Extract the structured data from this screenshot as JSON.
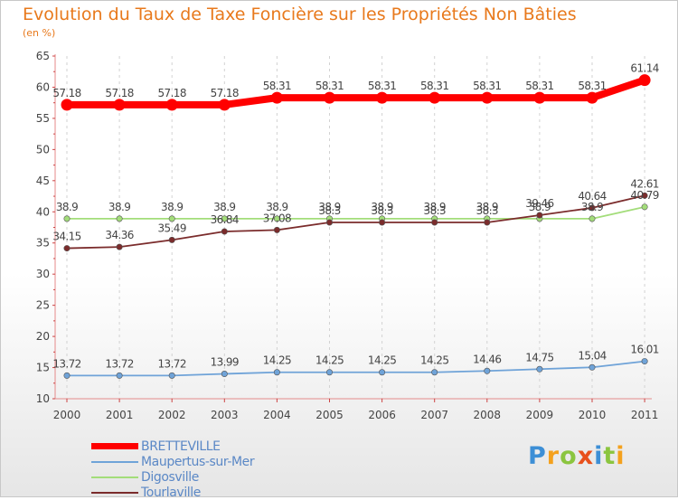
{
  "chart_data": {
    "type": "line",
    "title": "Evolution du Taux de Taxe Foncière sur les Propriétés Non Bâties",
    "subtitle": "(en %)",
    "x": [
      "2000",
      "2001",
      "2002",
      "2003",
      "2004",
      "2005",
      "2006",
      "2007",
      "2008",
      "2009",
      "2010",
      "2011"
    ],
    "ylim": [
      10,
      65
    ],
    "yticks": [
      "10",
      "15",
      "20",
      "25",
      "30",
      "35",
      "40",
      "45",
      "50",
      "55",
      "60",
      "65"
    ],
    "grid": "vertical dashed",
    "legend_position": "bottom-left",
    "series": [
      {
        "name": "BRETTEVILLE",
        "color": "#ff0000",
        "values": [
          57.18,
          57.18,
          57.18,
          57.18,
          58.31,
          58.31,
          58.31,
          58.31,
          58.31,
          58.31,
          58.31,
          61.14
        ],
        "labels": [
          "57.18",
          "57.18",
          "57.18",
          "57.18",
          "58.31",
          "58.31",
          "58.31",
          "58.31",
          "58.31",
          "58.31",
          "58.31",
          "61.14"
        ]
      },
      {
        "name": "Maupertus-sur-Mer",
        "color": "#6fa3d8",
        "values": [
          13.72,
          13.72,
          13.72,
          13.99,
          14.25,
          14.25,
          14.25,
          14.25,
          14.46,
          14.75,
          15.04,
          16.01
        ],
        "labels": [
          "13.72",
          "13.72",
          "13.72",
          "13.99",
          "14.25",
          "14.25",
          "14.25",
          "14.25",
          "14.46",
          "14.75",
          "15.04",
          "16.01"
        ]
      },
      {
        "name": "Digosville",
        "color": "#a3dd7a",
        "values": [
          38.9,
          38.9,
          38.9,
          38.9,
          38.9,
          38.9,
          38.9,
          38.9,
          38.9,
          38.9,
          38.9,
          40.79
        ],
        "labels": [
          "38.9",
          "38.9",
          "38.9",
          "38.9",
          "38.9",
          "38.9",
          "38.9",
          "38.9",
          "38.9",
          "38.9",
          "38.9",
          "40.79"
        ]
      },
      {
        "name": "Tourlaville",
        "color": "#7b2c2c",
        "values": [
          34.15,
          34.36,
          35.49,
          36.84,
          37.08,
          38.3,
          38.3,
          38.3,
          38.3,
          39.46,
          40.64,
          42.61
        ],
        "labels": [
          "34.15",
          "34.36",
          "35.49",
          "36.84",
          "37.08",
          "38.3",
          "38.3",
          "38.3",
          "38.3",
          "39.46",
          "40.64",
          "42.61"
        ]
      }
    ]
  },
  "logo": {
    "letters": [
      "P",
      "r",
      "o",
      "x",
      "i",
      "t",
      "i"
    ],
    "colors": [
      "#3d8fd6",
      "#f4a11d",
      "#8bc53f",
      "#e8501c",
      "#3d8fd6",
      "#8bc53f",
      "#f4a11d"
    ]
  }
}
